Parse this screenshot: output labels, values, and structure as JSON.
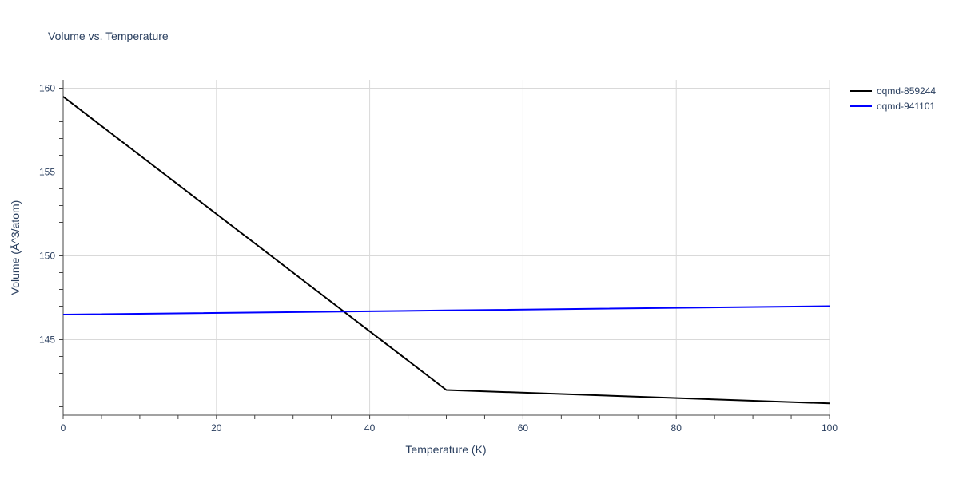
{
  "chart_data": {
    "type": "line",
    "title": "Volume vs. Temperature",
    "xlabel": "Temperature (K)",
    "ylabel": "Volume (Å^3/atom)",
    "xlim": [
      0,
      100
    ],
    "ylim": [
      140.5,
      160.5
    ],
    "x_ticks": [
      0,
      20,
      40,
      60,
      80,
      100
    ],
    "y_ticks": [
      145,
      150,
      155,
      160
    ],
    "grid": true,
    "legend_position": "top-right",
    "series": [
      {
        "name": "oqmd-859244",
        "color": "#000000",
        "x": [
          0,
          50,
          100
        ],
        "y": [
          159.5,
          142.0,
          141.2
        ]
      },
      {
        "name": "oqmd-941101",
        "color": "#0000ff",
        "x": [
          0,
          50,
          100
        ],
        "y": [
          146.5,
          146.75,
          147.0
        ]
      }
    ]
  }
}
